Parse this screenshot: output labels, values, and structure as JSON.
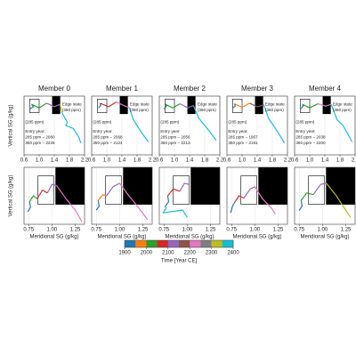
{
  "chart_data": [
    {
      "type": "line",
      "title": "Member 0",
      "ylabel": "Vertical SG (g/kg)",
      "xlim": [
        0.6,
        2.2
      ],
      "ylim": [
        0,
        1
      ],
      "xticks": [
        0.6,
        {
          "value": 1,
          "label": "1.0"
        },
        1.4,
        1.8,
        2.2
      ],
      "grid": true,
      "boxes": [
        {
          "x": [
            0.75,
            1.0
          ],
          "y": [
            0.72,
            0.95
          ],
          "fill": "none"
        },
        {
          "x": [
            1.35,
            1.55
          ],
          "y": [
            0.7,
            1.0
          ],
          "fill": "#000000"
        }
      ],
      "annotations": [
        "Edge state",
        "(360 ppm)",
        "(285 ppm)",
        "Entry year:",
        "285 ppm – 2080",
        "360 ppm – 2226"
      ],
      "series": [
        {
          "color": "#1f77b4",
          "x": [
            0.75,
            0.85,
            0.8
          ],
          "values": [
            0.78,
            0.82,
            0.86
          ]
        },
        {
          "color": "#2ca02c",
          "x": [
            0.8,
            1.0,
            1.2
          ],
          "values": [
            0.86,
            0.8,
            0.88
          ]
        },
        {
          "color": "#9467bd",
          "x": [
            1.2,
            1.4,
            1.55
          ],
          "values": [
            0.88,
            0.82,
            0.86
          ]
        },
        {
          "color": "#bcbd22",
          "x": [
            1.55,
            1.6
          ],
          "values": [
            0.86,
            0.72
          ]
        },
        {
          "color": "#17becf",
          "x": [
            1.6,
            1.75,
            1.7,
            1.9,
            2.05,
            2.1
          ],
          "values": [
            0.72,
            0.55,
            0.5,
            0.45,
            0.3,
            0.2
          ]
        }
      ]
    },
    {
      "type": "line",
      "title": "Member 1",
      "xlim": [
        0.6,
        2.2
      ],
      "ylim": [
        0,
        1
      ],
      "xticks": [
        0.6,
        {
          "value": 1,
          "label": "1.0"
        },
        1.4,
        1.8,
        2.2
      ],
      "grid": true,
      "boxes": [
        {
          "x": [
            0.75,
            1.0
          ],
          "y": [
            0.72,
            0.95
          ],
          "fill": "none"
        },
        {
          "x": [
            1.35,
            1.55
          ],
          "y": [
            0.7,
            1.0
          ],
          "fill": "#000000"
        }
      ],
      "annotations": [
        "Edge state",
        "(360 ppm)",
        "(285 ppm)",
        "Entry year:",
        "285 ppm – 2068",
        "360 ppm – 2124"
      ],
      "series": [
        {
          "color": "#1f77b4",
          "x": [
            0.78,
            0.84,
            0.82
          ],
          "values": [
            0.8,
            0.84,
            0.88
          ]
        },
        {
          "color": "#d62728",
          "x": [
            0.82,
            1.05,
            1.25
          ],
          "values": [
            0.88,
            0.82,
            0.9
          ]
        },
        {
          "color": "#e377c2",
          "x": [
            1.25,
            1.45,
            1.6
          ],
          "values": [
            0.9,
            0.84,
            0.8
          ]
        },
        {
          "color": "#17becf",
          "x": [
            1.6,
            1.7,
            1.8,
            1.95,
            2.1
          ],
          "values": [
            0.8,
            0.6,
            0.5,
            0.35,
            0.22
          ]
        }
      ]
    },
    {
      "type": "line",
      "title": "Member 2",
      "xlim": [
        0.6,
        2.2
      ],
      "ylim": [
        0,
        1
      ],
      "xticks": [
        0.6,
        {
          "value": 1,
          "label": "1.0"
        },
        1.4,
        1.8,
        2.2
      ],
      "grid": true,
      "boxes": [
        {
          "x": [
            0.75,
            1.0
          ],
          "y": [
            0.72,
            0.95
          ],
          "fill": "none"
        },
        {
          "x": [
            1.35,
            1.55
          ],
          "y": [
            0.7,
            1.0
          ],
          "fill": "#000000"
        }
      ],
      "annotations": [
        "Edge state",
        "(360 ppm)",
        "(285 ppm)",
        "Entry year:",
        "285 ppm – 2056",
        "360 ppm – 2213"
      ],
      "series": [
        {
          "color": "#1f77b4",
          "x": [
            0.72,
            0.8,
            0.76
          ],
          "values": [
            0.78,
            0.84,
            0.86
          ]
        },
        {
          "color": "#2ca02c",
          "x": [
            0.76,
            0.95,
            1.15
          ],
          "values": [
            0.86,
            0.8,
            0.87
          ]
        },
        {
          "color": "#9467bd",
          "x": [
            1.15,
            1.35,
            1.5
          ],
          "values": [
            0.87,
            0.8,
            0.84
          ]
        },
        {
          "color": "#17becf",
          "x": [
            1.5,
            1.65,
            1.8,
            1.95,
            2.1
          ],
          "values": [
            0.84,
            0.62,
            0.5,
            0.38,
            0.25
          ]
        }
      ]
    },
    {
      "type": "line",
      "title": "Member 3",
      "xlim": [
        0.6,
        2.2
      ],
      "ylim": [
        0,
        1
      ],
      "xticks": [
        0.6,
        {
          "value": 1,
          "label": "1.0"
        },
        1.4,
        1.8,
        2.2
      ],
      "grid": true,
      "boxes": [
        {
          "x": [
            0.75,
            1.0
          ],
          "y": [
            0.72,
            0.95
          ],
          "fill": "none"
        },
        {
          "x": [
            1.35,
            1.55
          ],
          "y": [
            0.7,
            1.0
          ],
          "fill": "#000000"
        }
      ],
      "annotations": [
        "Edge state",
        "(360 ppm)",
        "(285 ppm)",
        "Entry year:",
        "285 ppm – 1967",
        "360 ppm – 2191"
      ],
      "series": [
        {
          "color": "#1f77b4",
          "x": [
            0.76,
            0.82,
            0.8
          ],
          "values": [
            0.8,
            0.83,
            0.87
          ]
        },
        {
          "color": "#ff7f0e",
          "x": [
            0.8,
            1.0,
            1.2
          ],
          "values": [
            0.87,
            0.81,
            0.88
          ]
        },
        {
          "color": "#8c564b",
          "x": [
            1.2,
            1.4,
            1.58
          ],
          "values": [
            0.88,
            0.82,
            0.85
          ]
        },
        {
          "color": "#17becf",
          "x": [
            1.58,
            1.7,
            1.85,
            2.0,
            2.12
          ],
          "values": [
            0.85,
            0.62,
            0.48,
            0.33,
            0.2
          ]
        }
      ]
    },
    {
      "type": "line",
      "title": "Member 4",
      "xlim": [
        0.6,
        2.2
      ],
      "ylim": [
        0,
        1
      ],
      "xticks": [
        0.6,
        {
          "value": 1,
          "label": "1.0"
        },
        1.4,
        1.8,
        2.2
      ],
      "grid": true,
      "boxes": [
        {
          "x": [
            0.75,
            1.0
          ],
          "y": [
            0.72,
            0.95
          ],
          "fill": "none"
        },
        {
          "x": [
            1.35,
            1.55
          ],
          "y": [
            0.7,
            1.0
          ],
          "fill": "#000000"
        }
      ],
      "annotations": [
        "Edge state",
        "(360 ppm)",
        "(285 ppm)",
        "Entry year:",
        "285 ppm – 2038",
        "360 ppm – 2200"
      ],
      "series": [
        {
          "color": "#1f77b4",
          "x": [
            0.77,
            0.83,
            0.81
          ],
          "values": [
            0.79,
            0.83,
            0.86
          ]
        },
        {
          "color": "#2ca02c",
          "x": [
            0.81,
            1.0,
            1.22
          ],
          "values": [
            0.86,
            0.8,
            0.87
          ]
        },
        {
          "color": "#e377c2",
          "x": [
            1.22,
            1.42,
            1.57
          ],
          "values": [
            0.87,
            0.83,
            0.86
          ]
        },
        {
          "color": "#17becf",
          "x": [
            1.57,
            1.72,
            1.88,
            2.02,
            2.12
          ],
          "values": [
            0.86,
            0.6,
            0.5,
            0.34,
            0.22
          ]
        }
      ]
    },
    {
      "type": "line",
      "ylabel": "Vertical SG (g/kg)",
      "xlabel": "Meridional SG (g/kg)",
      "xlim": [
        0.7,
        1.35
      ],
      "ylim": [
        0,
        1
      ],
      "xticks": [
        {
          "value": 0.75,
          "label": "0.75"
        },
        {
          "value": 1,
          "label": "1.00"
        },
        {
          "value": 1.25,
          "label": "1.25"
        }
      ],
      "grid": true,
      "boxes": [
        {
          "x": [
            0.85,
            1.02
          ],
          "y": [
            0.35,
            0.85
          ],
          "fill": "none"
        },
        {
          "x": [
            1.04,
            1.35
          ],
          "y": [
            0.35,
            1.0
          ],
          "fill": "#000000"
        }
      ],
      "series": [
        {
          "color": "#1f77b4",
          "x": [
            0.74,
            0.77,
            0.76
          ],
          "values": [
            0.22,
            0.3,
            0.4
          ]
        },
        {
          "color": "#2ca02c",
          "x": [
            0.76,
            0.8,
            0.84
          ],
          "values": [
            0.4,
            0.5,
            0.45
          ]
        },
        {
          "color": "#d62728",
          "x": [
            0.84,
            0.9,
            0.95
          ],
          "values": [
            0.45,
            0.6,
            0.55
          ]
        },
        {
          "color": "#9467bd",
          "x": [
            0.95,
            1.0,
            1.05
          ],
          "values": [
            0.55,
            0.7,
            0.68
          ]
        },
        {
          "color": "#e377c2",
          "x": [
            1.05,
            1.15,
            1.25,
            1.32
          ],
          "values": [
            0.68,
            0.45,
            0.25,
            0.05
          ]
        }
      ]
    },
    {
      "type": "line",
      "xlabel": "Meridional SG (g/kg)",
      "xlim": [
        0.7,
        1.35
      ],
      "ylim": [
        0,
        1
      ],
      "xticks": [
        {
          "value": 0.75,
          "label": "0.75"
        },
        {
          "value": 1,
          "label": "1.00"
        },
        {
          "value": 1.25,
          "label": "1.25"
        }
      ],
      "grid": true,
      "boxes": [
        {
          "x": [
            0.85,
            1.02
          ],
          "y": [
            0.35,
            0.85
          ],
          "fill": "none"
        },
        {
          "x": [
            1.04,
            1.35
          ],
          "y": [
            0.35,
            1.0
          ],
          "fill": "#000000"
        }
      ],
      "series": [
        {
          "color": "#1f77b4",
          "x": [
            0.75,
            0.78,
            0.77
          ],
          "values": [
            0.25,
            0.32,
            0.42
          ]
        },
        {
          "color": "#ff7f0e",
          "x": [
            0.77,
            0.82,
            0.86
          ],
          "values": [
            0.42,
            0.52,
            0.5
          ]
        },
        {
          "color": "#9467bd",
          "x": [
            0.86,
            0.93,
            1.0
          ],
          "values": [
            0.5,
            0.66,
            0.72
          ]
        },
        {
          "color": "#e377c2",
          "x": [
            1.0,
            1.1,
            1.2,
            1.3
          ],
          "values": [
            0.72,
            0.5,
            0.3,
            0.08
          ]
        }
      ]
    },
    {
      "type": "line",
      "xlabel": "Meridional SG (g/kg)",
      "xlim": [
        0.7,
        1.35
      ],
      "ylim": [
        0,
        1
      ],
      "xticks": [
        {
          "value": 0.75,
          "label": "0.75"
        },
        {
          "value": 1,
          "label": "1.00"
        },
        {
          "value": 1.25,
          "label": "1.25"
        }
      ],
      "grid": true,
      "boxes": [
        {
          "x": [
            0.85,
            1.02
          ],
          "y": [
            0.35,
            0.85
          ],
          "fill": "none"
        },
        {
          "x": [
            1.04,
            1.35
          ],
          "y": [
            0.35,
            1.0
          ],
          "fill": "#000000"
        }
      ],
      "series": [
        {
          "color": "#17becf",
          "x": [
            0.78,
            0.74,
            0.95,
            1.0
          ],
          "values": [
            0.3,
            0.2,
            0.25,
            0.12
          ]
        },
        {
          "color": "#1f77b4",
          "x": [
            0.76,
            0.8,
            0.79
          ],
          "values": [
            0.3,
            0.4,
            0.5
          ]
        },
        {
          "color": "#d62728",
          "x": [
            0.79,
            0.85,
            0.92
          ],
          "values": [
            0.5,
            0.62,
            0.58
          ]
        },
        {
          "color": "#9467bd",
          "x": [
            0.92,
            0.97,
            1.02
          ],
          "values": [
            0.58,
            0.72,
            0.7
          ]
        }
      ]
    },
    {
      "type": "line",
      "xlabel": "Meridional SG (g/kg)",
      "xlim": [
        0.7,
        1.35
      ],
      "ylim": [
        0,
        1
      ],
      "xticks": [
        {
          "value": 0.75,
          "label": "0.75"
        },
        {
          "value": 1,
          "label": "1.00"
        },
        {
          "value": 1.25,
          "label": "1.25"
        }
      ],
      "grid": true,
      "boxes": [
        {
          "x": [
            0.85,
            1.02
          ],
          "y": [
            0.35,
            0.85
          ],
          "fill": "none"
        },
        {
          "x": [
            1.04,
            1.35
          ],
          "y": [
            0.35,
            1.0
          ],
          "fill": "#000000"
        }
      ],
      "series": [
        {
          "color": "#1f77b4",
          "x": [
            0.74,
            0.76,
            0.78
          ],
          "values": [
            0.2,
            0.32,
            0.38
          ]
        },
        {
          "color": "#d62728",
          "x": [
            0.78,
            0.83,
            0.88
          ],
          "values": [
            0.38,
            0.5,
            0.46
          ]
        },
        {
          "color": "#9467bd",
          "x": [
            0.88,
            0.95,
            1.0
          ],
          "values": [
            0.46,
            0.62,
            0.66
          ]
        },
        {
          "color": "#e377c2",
          "x": [
            1.0,
            1.08,
            1.18,
            1.22
          ],
          "values": [
            0.66,
            0.45,
            0.28,
            0.18
          ]
        }
      ]
    },
    {
      "type": "line",
      "xlabel": "Meridional SG (g/kg)",
      "xlim": [
        0.7,
        1.35
      ],
      "ylim": [
        0,
        1
      ],
      "xticks": [
        {
          "value": 0.75,
          "label": "0.75"
        },
        {
          "value": 1,
          "label": "1.00"
        },
        {
          "value": 1.25,
          "label": "1.25"
        }
      ],
      "grid": true,
      "boxes": [
        {
          "x": [
            0.85,
            1.02
          ],
          "y": [
            0.35,
            0.85
          ],
          "fill": "none"
        },
        {
          "x": [
            1.04,
            1.35
          ],
          "y": [
            0.35,
            1.0
          ],
          "fill": "#000000"
        }
      ],
      "series": [
        {
          "color": "#1f77b4",
          "x": [
            0.75,
            0.78,
            0.77
          ],
          "values": [
            0.24,
            0.32,
            0.42
          ]
        },
        {
          "color": "#2ca02c",
          "x": [
            0.77,
            0.83,
            0.9
          ],
          "values": [
            0.42,
            0.55,
            0.52
          ]
        },
        {
          "color": "#9467bd",
          "x": [
            0.9,
            0.98,
            1.04
          ],
          "values": [
            0.52,
            0.7,
            0.72
          ]
        },
        {
          "color": "#bcbd22",
          "x": [
            1.04,
            1.14,
            1.22,
            1.3
          ],
          "values": [
            0.72,
            0.52,
            0.32,
            0.12
          ]
        }
      ]
    },
    {
      "type": "colorbar",
      "xlabel": "Time [Year CE]",
      "xlim": [
        1900,
        2400
      ],
      "xticks": [
        1900,
        2000,
        2100,
        2200,
        2300,
        2400
      ],
      "colors": [
        "#1f77b4",
        "#ff7f0e",
        "#2ca02c",
        "#d62728",
        "#9467bd",
        "#8c564b",
        "#e377c2",
        "#7f7f7f",
        "#bcbd22",
        "#17becf"
      ]
    }
  ]
}
